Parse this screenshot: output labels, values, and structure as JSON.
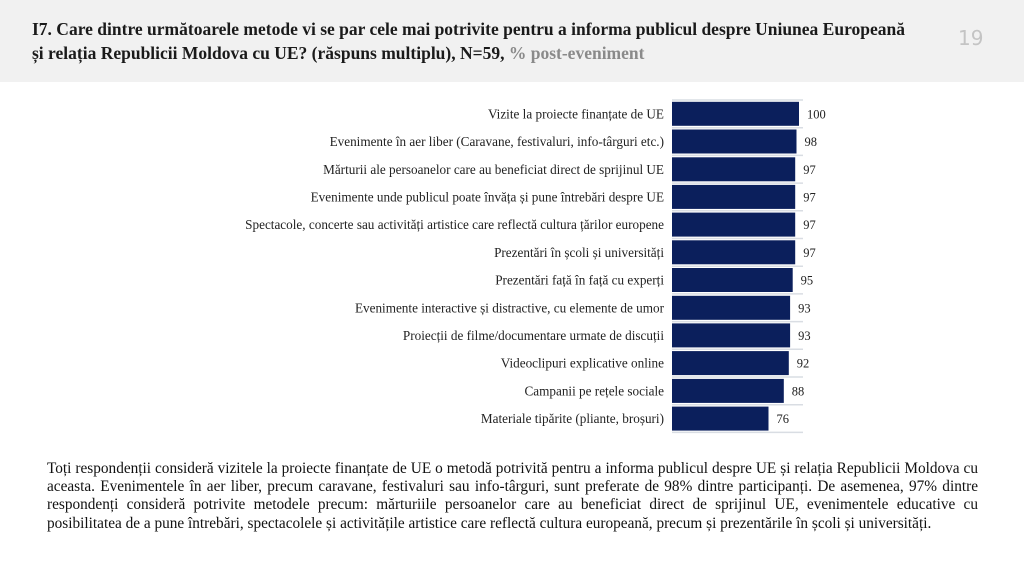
{
  "header": {
    "title_main": "I7. Care dintre următoarele metode vi se par cele mai potrivite pentru a informa publicul despre Uniunea Europeană și relația Republicii Moldova cu UE? (răspuns multiplu), N=59,",
    "title_sub": "% post-eveniment",
    "page_number": "19"
  },
  "colors": {
    "bar": "#0b1f5c",
    "separator": "#d9dde3",
    "header_bg": "#f1f1f1"
  },
  "chart_data": {
    "type": "bar",
    "orientation": "horizontal",
    "title": "",
    "xlabel": "",
    "ylabel": "",
    "xlim": [
      0,
      100
    ],
    "grid": false,
    "categories": [
      "Vizite la proiecte finanțate de UE",
      "Evenimente în aer liber (Caravane, festivaluri, info-târguri etc.)",
      "Mărturii ale persoanelor care au beneficiat direct de sprijinul UE",
      "Evenimente unde publicul poate învăța și pune întrebări despre UE",
      "Spectacole, concerte sau activități artistice care reflectă cultura țărilor europene",
      "Prezentări în școli și universități",
      "Prezentări față în față cu experți",
      "Evenimente interactive și distractive, cu elemente de umor",
      "Proiecții de filme/documentare urmate de discuții",
      "Videoclipuri explicative online",
      "Campanii pe rețele sociale",
      "Materiale tipărite (pliante, broșuri)"
    ],
    "values": [
      100,
      98,
      97,
      97,
      97,
      97,
      95,
      93,
      93,
      92,
      88,
      76
    ],
    "data_labels": [
      "100",
      "98",
      "97",
      "97",
      "97",
      "97",
      "95",
      "93",
      "93",
      "92",
      "88",
      "76"
    ]
  },
  "summary": {
    "text": "Toți respondenții consideră vizitele la proiecte finanțate de UE o metodă potrivită pentru a informa publicul despre UE și relația Republicii Moldova cu aceasta. Evenimentele în aer liber, precum caravane, festivaluri sau info-târguri, sunt preferate de 98% dintre participanți. De asemenea, 97% dintre respondenți consideră potrivite metodele precum: mărturiile persoanelor care au beneficiat direct de sprijinul UE, evenimentele educative cu posibilitatea de a pune întrebări, spectacolele și activitățile artistice care reflectă cultura europeană, precum și prezentările în școli și universități."
  }
}
